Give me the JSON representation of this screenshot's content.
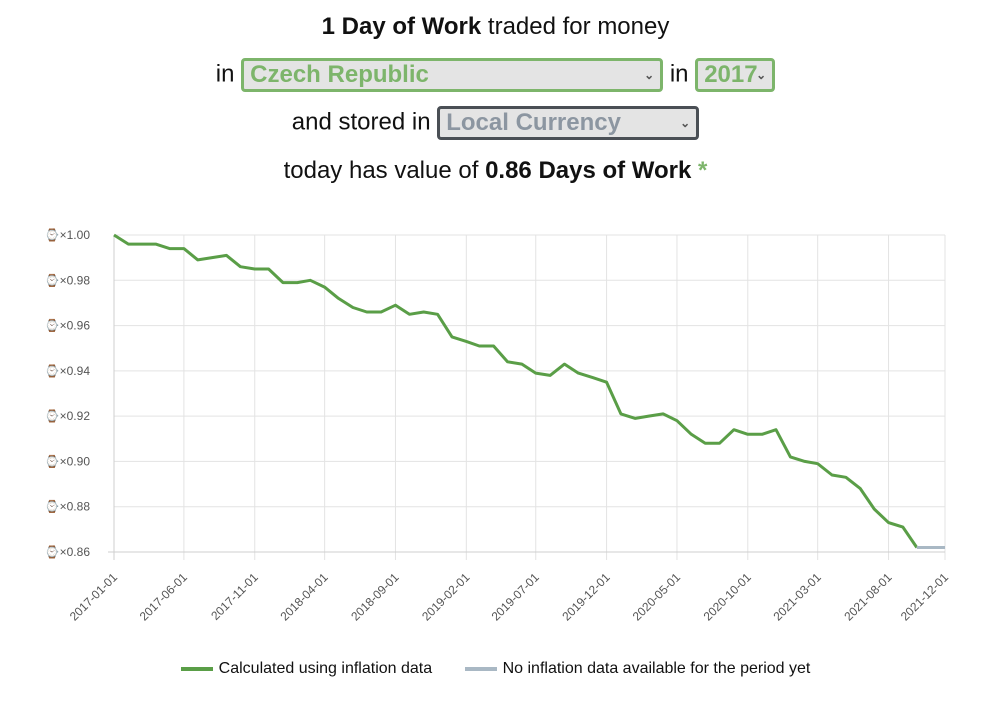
{
  "header": {
    "line1_bold": "1 Day of Work",
    "line1_rest": " traded for money",
    "in_label": "in",
    "country_value": "Czech Republic",
    "in_label2": "in",
    "year_value": "2017",
    "stored_label": "and stored in",
    "currency_value": "Local Currency",
    "result_prefix": "today has value of ",
    "result_value": "0.86 Days of Work",
    "result_star": "*"
  },
  "colors": {
    "accent": "#7db56b",
    "line_actual": "#5a9e47",
    "line_projected": "#a9b8c4"
  },
  "chart_data": {
    "type": "line",
    "title": "",
    "xlabel": "",
    "ylabel": "",
    "ylim": [
      0.86,
      1.0
    ],
    "y_ticks": [
      "⌚×1.00",
      "⌚×0.98",
      "⌚×0.96",
      "⌚×0.94",
      "⌚×0.92",
      "⌚×0.90",
      "⌚×0.88",
      "⌚×0.86"
    ],
    "x_ticks": [
      "2017-01-01",
      "2017-06-01",
      "2017-11-01",
      "2018-04-01",
      "2018-09-01",
      "2019-02-01",
      "2019-07-01",
      "2019-12-01",
      "2020-05-01",
      "2020-10-01",
      "2021-03-01",
      "2021-08-01",
      "2021-12-01"
    ],
    "grid": true,
    "legend_position": "bottom",
    "series": [
      {
        "name": "Calculated using inflation data",
        "color": "#5a9e47",
        "x": [
          "2017-01-01",
          "2017-02-01",
          "2017-03-01",
          "2017-04-01",
          "2017-05-01",
          "2017-06-01",
          "2017-07-01",
          "2017-08-01",
          "2017-09-01",
          "2017-10-01",
          "2017-11-01",
          "2017-12-01",
          "2018-01-01",
          "2018-02-01",
          "2018-03-01",
          "2018-04-01",
          "2018-05-01",
          "2018-06-01",
          "2018-07-01",
          "2018-08-01",
          "2018-09-01",
          "2018-10-01",
          "2018-11-01",
          "2018-12-01",
          "2019-01-01",
          "2019-02-01",
          "2019-03-01",
          "2019-04-01",
          "2019-05-01",
          "2019-06-01",
          "2019-07-01",
          "2019-08-01",
          "2019-09-01",
          "2019-10-01",
          "2019-11-01",
          "2019-12-01",
          "2020-01-01",
          "2020-02-01",
          "2020-03-01",
          "2020-04-01",
          "2020-05-01",
          "2020-06-01",
          "2020-07-01",
          "2020-08-01",
          "2020-09-01",
          "2020-10-01",
          "2020-11-01",
          "2020-12-01",
          "2021-01-01",
          "2021-02-01",
          "2021-03-01",
          "2021-04-01",
          "2021-05-01",
          "2021-06-01",
          "2021-07-01",
          "2021-08-01",
          "2021-09-01",
          "2021-10-01"
        ],
        "values": [
          1.0,
          0.996,
          0.996,
          0.996,
          0.994,
          0.994,
          0.989,
          0.99,
          0.991,
          0.986,
          0.985,
          0.985,
          0.979,
          0.979,
          0.98,
          0.977,
          0.972,
          0.968,
          0.966,
          0.966,
          0.969,
          0.965,
          0.966,
          0.965,
          0.955,
          0.953,
          0.951,
          0.951,
          0.944,
          0.943,
          0.939,
          0.938,
          0.943,
          0.939,
          0.937,
          0.935,
          0.921,
          0.919,
          0.92,
          0.921,
          0.918,
          0.912,
          0.908,
          0.908,
          0.914,
          0.912,
          0.912,
          0.914,
          0.902,
          0.9,
          0.899,
          0.894,
          0.893,
          0.888,
          0.879,
          0.873,
          0.871,
          0.862
        ]
      },
      {
        "name": "No inflation data available for the period yet",
        "color": "#a9b8c4",
        "x": [
          "2021-10-01",
          "2021-11-01",
          "2021-12-01"
        ],
        "values": [
          0.862,
          0.862,
          0.862
        ]
      }
    ]
  }
}
